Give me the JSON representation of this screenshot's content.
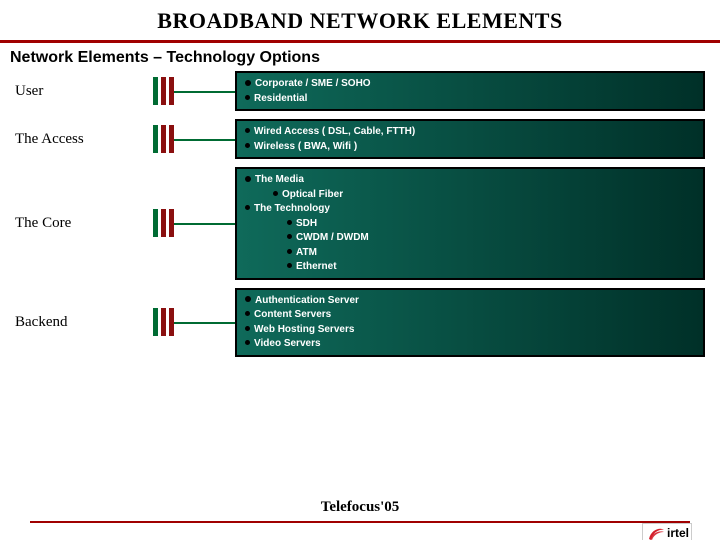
{
  "title": "BROADBAND NETWORK ELEMENTS",
  "subtitle": "Network Elements – Technology Options",
  "footer": "Telefocus'05",
  "logo": {
    "brand_color": "#d4202c",
    "text": "irtel"
  },
  "accent_rule_color": "#a00000",
  "connector_colors": {
    "bar1": "#006b33",
    "bar2": "#8a0f0f",
    "bar3": "#8a0f0f",
    "line": "#006b33"
  },
  "panel_style": {
    "gradient_from": "#0f6a5a",
    "gradient_to": "#003028",
    "text_color": "#ffffff",
    "border_color": "#000000"
  },
  "rows": [
    {
      "label": "User",
      "items": [
        {
          "text": "Corporate / SME / SOHO",
          "level": 0,
          "big": true
        },
        {
          "text": "Residential",
          "level": 0
        }
      ]
    },
    {
      "label": "The Access",
      "items": [
        {
          "text": "Wired Access ( DSL, Cable, FTTH)",
          "level": 0
        },
        {
          "text": "Wireless ( BWA, Wifi )",
          "level": 0
        }
      ]
    },
    {
      "label": "The Core",
      "items": [
        {
          "text": "The Media",
          "level": 0,
          "big": true
        },
        {
          "text": "Optical Fiber",
          "level": 1
        },
        {
          "text": "The Technology",
          "level": 0
        },
        {
          "text": "SDH",
          "level": 2
        },
        {
          "text": "CWDM / DWDM",
          "level": 2
        },
        {
          "text": "ATM",
          "level": 2
        },
        {
          "text": "Ethernet",
          "level": 2
        }
      ]
    },
    {
      "label": "Backend",
      "items": [
        {
          "text": "Authentication Server",
          "level": 0,
          "big": true
        },
        {
          "text": "Content Servers",
          "level": 0
        },
        {
          "text": "Web Hosting Servers",
          "level": 0
        },
        {
          "text": "Video Servers",
          "level": 0
        }
      ]
    }
  ]
}
